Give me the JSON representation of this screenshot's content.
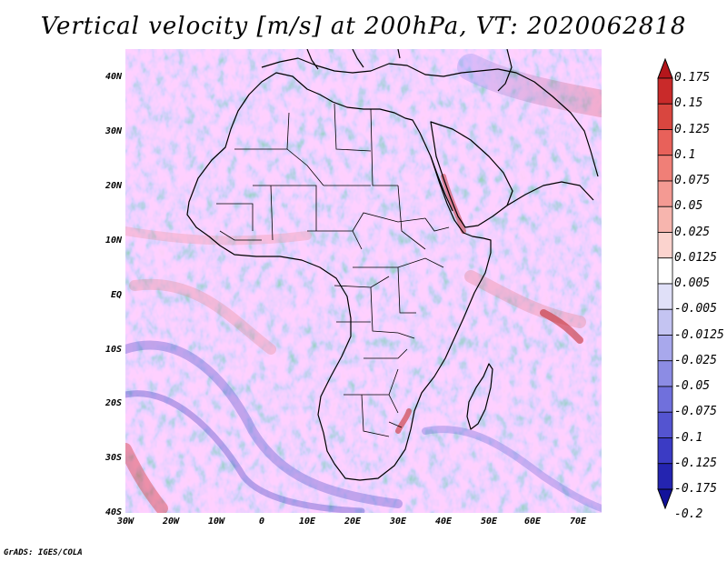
{
  "title": "Vertical velocity [m/s] at 200hPa, VT: 2020062818",
  "footer": "GrADS: IGES/COLA",
  "map": {
    "region": "Africa",
    "field": "vertical velocity",
    "level": "200hPa",
    "lat_range": [
      -40,
      45
    ],
    "lon_range": [
      -30,
      75
    ]
  },
  "lat_labels": [
    {
      "text": "40N",
      "value": 40
    },
    {
      "text": "30N",
      "value": 30
    },
    {
      "text": "20N",
      "value": 20
    },
    {
      "text": "10N",
      "value": 10
    },
    {
      "text": "EQ",
      "value": 0
    },
    {
      "text": "10S",
      "value": -10
    },
    {
      "text": "20S",
      "value": -20
    },
    {
      "text": "30S",
      "value": -30
    },
    {
      "text": "40S",
      "value": -40
    }
  ],
  "lon_labels": [
    {
      "text": "30W",
      "value": -30
    },
    {
      "text": "20W",
      "value": -20
    },
    {
      "text": "10W",
      "value": -10
    },
    {
      "text": "0",
      "value": 0
    },
    {
      "text": "10E",
      "value": 10
    },
    {
      "text": "20E",
      "value": 20
    },
    {
      "text": "30E",
      "value": 30
    },
    {
      "text": "40E",
      "value": 40
    },
    {
      "text": "50E",
      "value": 50
    },
    {
      "text": "60E",
      "value": 60
    },
    {
      "text": "70E",
      "value": 70
    }
  ],
  "colorbar": {
    "labels": [
      "0.175",
      "0.15",
      "0.125",
      "0.1",
      "0.075",
      "0.05",
      "0.025",
      "0.0125",
      "0.005",
      "-0.005",
      "-0.0125",
      "-0.025",
      "-0.05",
      "-0.075",
      "-0.1",
      "-0.125",
      "-0.175",
      "-0.2"
    ],
    "colors": [
      "#b4161b",
      "#c92a2a",
      "#d9463f",
      "#e8615a",
      "#f07f77",
      "#f49a93",
      "#f7b5ae",
      "#fbd3ce",
      "#ffffff",
      "#e0e0f8",
      "#c4c4f2",
      "#a8a8ec",
      "#8c8ce4",
      "#7070dc",
      "#5454d0",
      "#3b3bc4",
      "#2424b0",
      "#12129a"
    ]
  }
}
